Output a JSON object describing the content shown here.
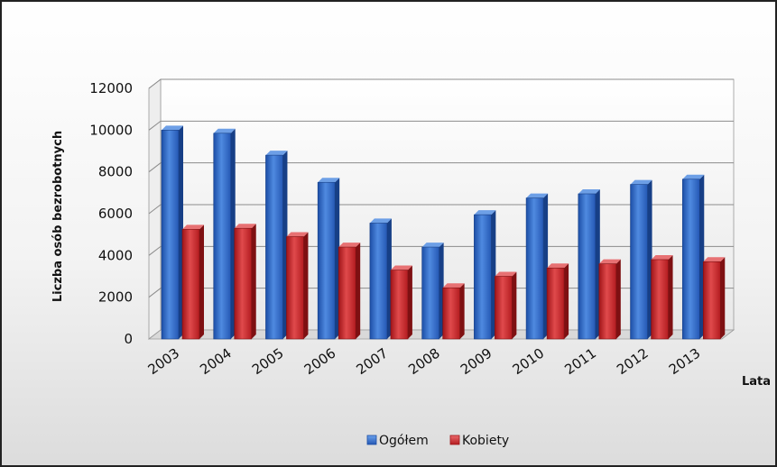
{
  "chart_data": {
    "type": "bar",
    "title": "",
    "xlabel": "Lata",
    "ylabel": "Liczba osób bezrobotnych",
    "categories": [
      "2003",
      "2004",
      "2005",
      "2006",
      "2007",
      "2008",
      "2009",
      "2010",
      "2011",
      "2012",
      "2013"
    ],
    "series": [
      {
        "name": "Ogółem",
        "color": "#2f66c2",
        "values": [
          10000,
          9850,
          8800,
          7500,
          5550,
          4400,
          5950,
          6750,
          6950,
          7400,
          7650
        ]
      },
      {
        "name": "Kobiety",
        "color": "#c8262a",
        "values": [
          5250,
          5300,
          4900,
          4400,
          3300,
          2450,
          3000,
          3400,
          3600,
          3800,
          3700
        ]
      }
    ],
    "ylim": [
      0,
      12000
    ],
    "yticks": [
      "0",
      "2000",
      "4000",
      "6000",
      "8000",
      "10000",
      "12000"
    ],
    "grid": true,
    "legend_position": "bottom",
    "style": "3d-columns",
    "background": "gradient-light-gray"
  }
}
